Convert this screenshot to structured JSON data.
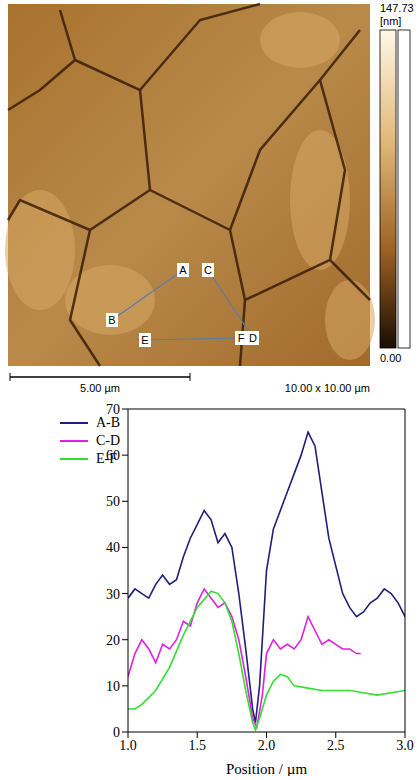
{
  "image": {
    "labels": [
      "A",
      "B",
      "C",
      "D",
      "E",
      "F"
    ],
    "color_bar": {
      "max": 147.73,
      "unit": "[nm]",
      "min": {
        "value": 0,
        "label": "0.00"
      }
    },
    "scale_bar": "5.00 µm",
    "scan_size": "10.00 x 10.00 µm"
  },
  "chart_data": {
    "type": "line",
    "x_label": "Position / µm",
    "xlim": [
      1,
      3
    ],
    "xticks": [
      {
        "value": 1,
        "label": "1.0"
      },
      {
        "value": 1.5,
        "label": "1.5"
      },
      {
        "value": 2,
        "label": "2.0"
      },
      {
        "value": 2.5,
        "label": "2.5"
      },
      {
        "value": 3,
        "label": "3.0"
      }
    ],
    "ylim": [
      0,
      70
    ],
    "yticks": [
      0,
      10,
      20,
      30,
      40,
      50,
      60,
      70
    ],
    "legend": "top-left",
    "grid": false,
    "series": [
      {
        "name": "A-B",
        "color": "#1f1f7a",
        "x": [
          1.0,
          1.05,
          1.1,
          1.15,
          1.2,
          1.25,
          1.3,
          1.35,
          1.4,
          1.45,
          1.5,
          1.55,
          1.6,
          1.65,
          1.7,
          1.75,
          1.8,
          1.85,
          1.9,
          1.92,
          1.95,
          2.0,
          2.05,
          2.1,
          2.15,
          2.2,
          2.25,
          2.3,
          2.35,
          2.4,
          2.45,
          2.5,
          2.55,
          2.6,
          2.65,
          2.7,
          2.75,
          2.8,
          2.85,
          2.9,
          2.95,
          3.0
        ],
        "values": [
          29,
          31,
          30,
          29,
          32,
          34,
          32,
          33,
          38,
          42,
          45,
          48,
          46,
          41,
          43,
          40,
          30,
          18,
          5,
          2,
          10,
          35,
          44,
          48,
          52,
          56,
          60,
          65,
          62,
          52,
          42,
          36,
          30,
          27,
          25,
          26,
          28,
          29,
          31,
          30,
          28,
          25
        ]
      },
      {
        "name": "C-D",
        "color": "#e020e0",
        "x": [
          1.0,
          1.05,
          1.1,
          1.15,
          1.2,
          1.25,
          1.3,
          1.35,
          1.4,
          1.45,
          1.5,
          1.55,
          1.6,
          1.65,
          1.7,
          1.75,
          1.8,
          1.85,
          1.9,
          1.93,
          1.97,
          2.0,
          2.05,
          2.1,
          2.15,
          2.2,
          2.25,
          2.3,
          2.35,
          2.4,
          2.45,
          2.5,
          2.55,
          2.6,
          2.65,
          2.68
        ],
        "values": [
          12,
          17,
          20,
          18,
          15,
          19,
          18,
          20,
          24,
          23,
          28,
          31,
          29,
          27,
          28,
          25,
          20,
          12,
          3,
          1,
          8,
          17,
          20,
          18,
          19,
          18,
          20,
          25,
          22,
          19,
          20,
          19,
          18,
          18,
          17,
          17
        ]
      },
      {
        "name": "E-F",
        "color": "#33dd33",
        "x": [
          1.0,
          1.05,
          1.1,
          1.2,
          1.3,
          1.4,
          1.5,
          1.6,
          1.65,
          1.7,
          1.75,
          1.8,
          1.85,
          1.9,
          1.92,
          1.95,
          2.0,
          2.05,
          2.1,
          2.15,
          2.2,
          2.3,
          2.4,
          2.5,
          2.6,
          2.7,
          2.8,
          2.9,
          3.0
        ],
        "values": [
          5,
          5,
          6,
          9,
          14,
          21,
          27,
          30.5,
          30,
          28,
          24,
          17,
          9,
          2,
          0.5,
          3,
          8,
          11,
          12.5,
          12,
          10,
          9.5,
          9,
          9,
          9,
          8.5,
          8,
          8.5,
          9
        ]
      }
    ]
  }
}
